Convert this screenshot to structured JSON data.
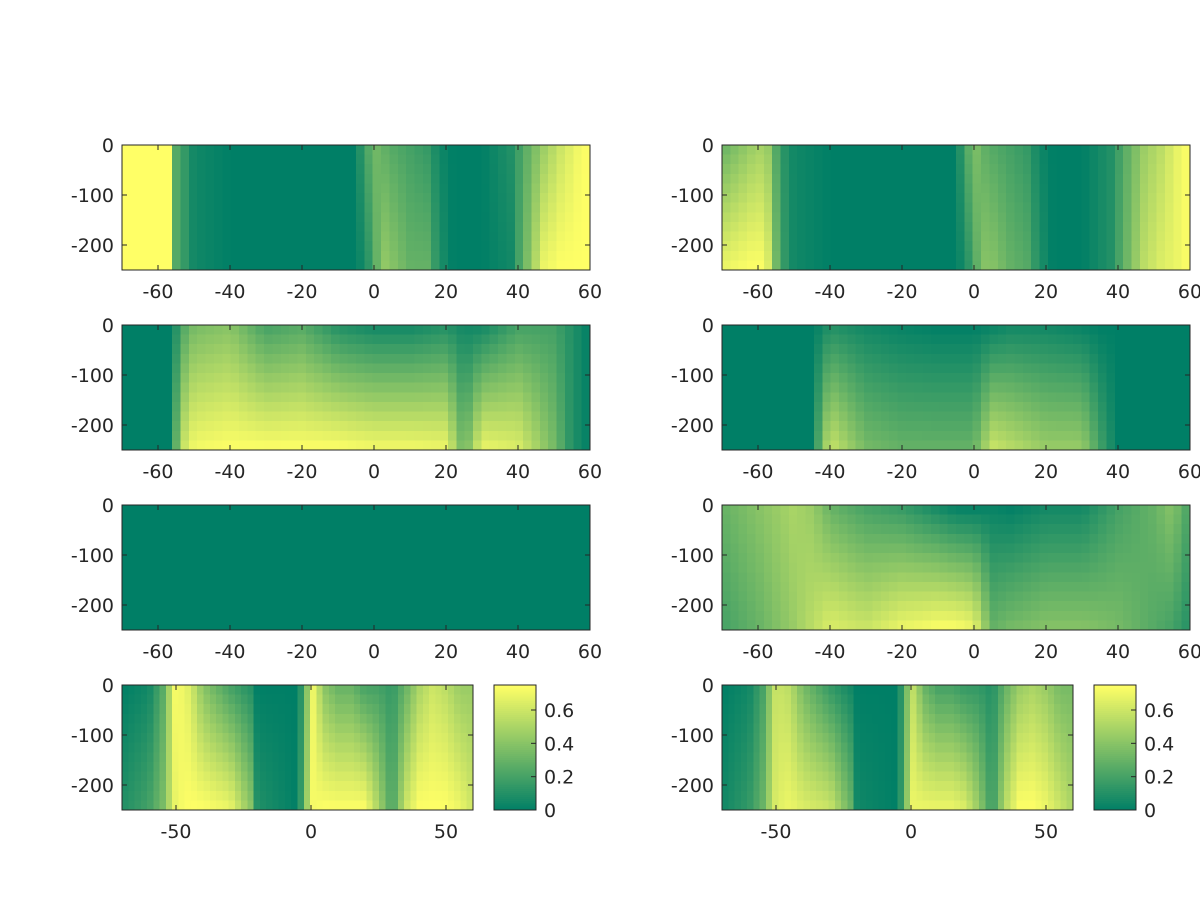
{
  "figure": {
    "background": "#ffffff",
    "colormap": {
      "low_color": "#007f66",
      "high_color": "#ffff66",
      "clim": [
        0,
        0.75
      ]
    }
  },
  "chart_data": [
    {
      "id": "panel-1",
      "type": "heatmap",
      "title": "",
      "xlim": [
        -70,
        60
      ],
      "ylim": [
        -250,
        0
      ],
      "xticks": [
        -60,
        -40,
        -20,
        0,
        20,
        40,
        60
      ],
      "yticks": [
        0,
        -100,
        -200
      ],
      "xtick_labels": [
        "-60",
        "-40",
        "-20",
        "0",
        "20",
        "40",
        "60"
      ],
      "ytick_labels": [
        "0",
        "-100",
        "-200"
      ],
      "profile_x": [
        -70,
        -56,
        -55,
        -50,
        -40,
        -20,
        -6,
        -3,
        0,
        2,
        5,
        10,
        15,
        18,
        22,
        30,
        38,
        43,
        47,
        52,
        57,
        60
      ],
      "top_values": [
        0.75,
        0.75,
        0.25,
        0.05,
        0.0,
        0.0,
        0.0,
        0.15,
        0.35,
        0.3,
        0.25,
        0.2,
        0.15,
        0.05,
        0.0,
        0.0,
        0.1,
        0.3,
        0.45,
        0.6,
        0.72,
        0.75
      ],
      "bottom_values": [
        0.75,
        0.75,
        0.25,
        0.05,
        0.0,
        0.0,
        0.0,
        0.05,
        0.2,
        0.45,
        0.4,
        0.3,
        0.3,
        0.1,
        0.0,
        0.0,
        0.05,
        0.4,
        0.7,
        0.75,
        0.75,
        0.75
      ],
      "colorbar": null
    },
    {
      "id": "panel-2",
      "type": "heatmap",
      "title": "",
      "xlim": [
        -70,
        60
      ],
      "ylim": [
        -250,
        0
      ],
      "xticks": [
        -60,
        -40,
        -20,
        0,
        20,
        40,
        60
      ],
      "yticks": [
        0,
        -100,
        -200
      ],
      "xtick_labels": [
        "-60",
        "-40",
        "-20",
        "0",
        "20",
        "40",
        "60"
      ],
      "ytick_labels": [
        "0",
        "-100",
        "-200"
      ],
      "profile_x": [
        -70,
        -62,
        -58,
        -56,
        -54,
        -50,
        -40,
        -20,
        -6,
        -3,
        0,
        2,
        5,
        10,
        15,
        18,
        22,
        30,
        38,
        43,
        47,
        52,
        57,
        60
      ],
      "top_values": [
        0.3,
        0.45,
        0.5,
        0.35,
        0.15,
        0.05,
        0.0,
        0.0,
        0.0,
        0.15,
        0.4,
        0.3,
        0.25,
        0.2,
        0.15,
        0.05,
        0.0,
        0.0,
        0.1,
        0.3,
        0.45,
        0.55,
        0.7,
        0.75
      ],
      "bottom_values": [
        0.7,
        0.75,
        0.75,
        0.5,
        0.2,
        0.05,
        0.0,
        0.0,
        0.0,
        0.05,
        0.2,
        0.4,
        0.4,
        0.3,
        0.25,
        0.1,
        0.0,
        0.0,
        0.1,
        0.35,
        0.55,
        0.65,
        0.7,
        0.75
      ],
      "colorbar": null
    },
    {
      "id": "panel-3",
      "type": "heatmap",
      "title": "",
      "xlim": [
        -70,
        60
      ],
      "ylim": [
        -250,
        0
      ],
      "xticks": [
        -60,
        -40,
        -20,
        0,
        20,
        40,
        60
      ],
      "yticks": [
        0,
        -100,
        -200
      ],
      "xtick_labels": [
        "-60",
        "-40",
        "-20",
        "0",
        "20",
        "40",
        "60"
      ],
      "ytick_labels": [
        "0",
        "-100",
        "-200"
      ],
      "profile_x": [
        -70,
        -56,
        -54,
        -50,
        -40,
        -30,
        -20,
        -10,
        0,
        10,
        20,
        25,
        30,
        40,
        50,
        55,
        60
      ],
      "top_values": [
        0.0,
        0.0,
        0.2,
        0.35,
        0.4,
        0.2,
        0.25,
        0.1,
        0.05,
        0.05,
        0.1,
        0.05,
        0.05,
        0.2,
        0.2,
        0.1,
        0.0
      ],
      "bottom_values": [
        0.0,
        0.0,
        0.55,
        0.72,
        0.75,
        0.75,
        0.75,
        0.75,
        0.72,
        0.72,
        0.7,
        0.3,
        0.7,
        0.65,
        0.35,
        0.1,
        0.0
      ],
      "colorbar": null
    },
    {
      "id": "panel-4",
      "type": "heatmap",
      "title": "",
      "xlim": [
        -70,
        60
      ],
      "ylim": [
        -250,
        0
      ],
      "xticks": [
        -60,
        -40,
        -20,
        0,
        20,
        40,
        60
      ],
      "yticks": [
        0,
        -100,
        -200
      ],
      "xtick_labels": [
        "-60",
        "-40",
        "-20",
        "0",
        "20",
        "40",
        "60"
      ],
      "ytick_labels": [
        "0",
        "-100",
        "-200"
      ],
      "profile_x": [
        -70,
        -45,
        -42,
        -40,
        -30,
        -20,
        -10,
        0,
        5,
        10,
        20,
        30,
        35,
        40,
        50,
        60
      ],
      "top_values": [
        0.0,
        0.0,
        0.05,
        0.1,
        0.05,
        0.02,
        0.0,
        0.0,
        0.02,
        0.05,
        0.05,
        0.02,
        0.0,
        0.0,
        0.0,
        0.0
      ],
      "bottom_values": [
        0.0,
        0.0,
        0.4,
        0.6,
        0.35,
        0.3,
        0.3,
        0.3,
        0.6,
        0.55,
        0.45,
        0.45,
        0.2,
        0.0,
        0.0,
        0.0
      ],
      "colorbar": null
    },
    {
      "id": "panel-5",
      "type": "heatmap",
      "title": "",
      "xlim": [
        -70,
        60
      ],
      "ylim": [
        -250,
        0
      ],
      "xticks": [
        -60,
        -40,
        -20,
        0,
        20,
        40,
        60
      ],
      "yticks": [
        0,
        -100,
        -200
      ],
      "xtick_labels": [
        "-60",
        "-40",
        "-20",
        "0",
        "20",
        "40",
        "60"
      ],
      "ytick_labels": [
        "0",
        "-100",
        "-200"
      ],
      "profile_x": [
        -70,
        0,
        60
      ],
      "top_values": [
        0.0,
        0.0,
        0.0
      ],
      "bottom_values": [
        0.0,
        0.0,
        0.0
      ],
      "colorbar": null
    },
    {
      "id": "panel-6",
      "type": "heatmap",
      "title": "",
      "xlim": [
        -70,
        60
      ],
      "ylim": [
        -250,
        0
      ],
      "xticks": [
        -60,
        -40,
        -20,
        0,
        20,
        40,
        60
      ],
      "yticks": [
        0,
        -100,
        -200
      ],
      "xtick_labels": [
        "-60",
        "-40",
        "-20",
        "0",
        "20",
        "40",
        "60"
      ],
      "ytick_labels": [
        "0",
        "-100",
        "-200"
      ],
      "profile_x": [
        -70,
        -60,
        -50,
        -45,
        -40,
        -30,
        -20,
        -10,
        -5,
        0,
        5,
        10,
        20,
        30,
        40,
        50,
        55,
        60
      ],
      "top_values": [
        0.3,
        0.4,
        0.5,
        0.45,
        0.3,
        0.2,
        0.15,
        0.05,
        0.0,
        0.0,
        0.02,
        0.0,
        0.05,
        0.05,
        0.2,
        0.3,
        0.4,
        0.2
      ],
      "bottom_values": [
        0.2,
        0.3,
        0.45,
        0.55,
        0.65,
        0.6,
        0.7,
        0.75,
        0.75,
        0.7,
        0.3,
        0.35,
        0.4,
        0.4,
        0.35,
        0.25,
        0.2,
        0.1
      ],
      "colorbar": null
    },
    {
      "id": "panel-7",
      "type": "heatmap",
      "title": "",
      "xlim": [
        -70,
        60
      ],
      "ylim": [
        -250,
        0
      ],
      "xticks": [
        -50,
        0,
        50
      ],
      "yticks": [
        0,
        -100,
        -200
      ],
      "xtick_labels": [
        "-50",
        "0",
        "50"
      ],
      "ytick_labels": [
        "0",
        "-100",
        "-200"
      ],
      "profile_x": [
        -70,
        -60,
        -55,
        -50,
        -45,
        -40,
        -30,
        -22,
        -20,
        -5,
        -2,
        0,
        5,
        10,
        15,
        20,
        25,
        30,
        35,
        40,
        45,
        50,
        55,
        60
      ],
      "top_values": [
        0.0,
        0.05,
        0.25,
        0.75,
        0.65,
        0.4,
        0.2,
        0.1,
        0.0,
        0.0,
        0.3,
        0.75,
        0.4,
        0.3,
        0.3,
        0.2,
        0.2,
        0.15,
        0.3,
        0.5,
        0.6,
        0.55,
        0.45,
        0.45
      ],
      "bottom_values": [
        0.1,
        0.2,
        0.35,
        0.7,
        0.75,
        0.75,
        0.7,
        0.4,
        0.1,
        0.0,
        0.4,
        0.72,
        0.75,
        0.75,
        0.75,
        0.75,
        0.5,
        0.2,
        0.6,
        0.75,
        0.75,
        0.75,
        0.7,
        0.6
      ],
      "colorbar": {
        "ticks": [
          0,
          0.2,
          0.4,
          0.6
        ],
        "tick_labels": [
          "0",
          "0.2",
          "0.4",
          "0.6"
        ],
        "range": [
          0,
          0.75
        ]
      }
    },
    {
      "id": "panel-8",
      "type": "heatmap",
      "title": "",
      "xlim": [
        -70,
        60
      ],
      "ylim": [
        -250,
        0
      ],
      "xticks": [
        -50,
        0,
        50
      ],
      "yticks": [
        0,
        -100,
        -200
      ],
      "xtick_labels": [
        "-50",
        "0",
        "50"
      ],
      "ytick_labels": [
        "0",
        "-100",
        "-200"
      ],
      "profile_x": [
        -70,
        -60,
        -55,
        -50,
        -45,
        -40,
        -30,
        -22,
        -20,
        -5,
        -2,
        0,
        5,
        10,
        15,
        20,
        25,
        30,
        35,
        40,
        45,
        50,
        55,
        60
      ],
      "top_values": [
        0.0,
        0.05,
        0.2,
        0.6,
        0.55,
        0.35,
        0.15,
        0.05,
        0.0,
        0.0,
        0.3,
        0.6,
        0.3,
        0.2,
        0.2,
        0.15,
        0.15,
        0.1,
        0.3,
        0.45,
        0.5,
        0.45,
        0.35,
        0.35
      ],
      "bottom_values": [
        0.05,
        0.15,
        0.3,
        0.65,
        0.7,
        0.65,
        0.6,
        0.3,
        0.05,
        0.0,
        0.35,
        0.7,
        0.7,
        0.7,
        0.7,
        0.65,
        0.45,
        0.15,
        0.55,
        0.75,
        0.75,
        0.7,
        0.6,
        0.5
      ],
      "colorbar": {
        "ticks": [
          0,
          0.2,
          0.4,
          0.6
        ],
        "tick_labels": [
          "0",
          "0.2",
          "0.4",
          "0.6"
        ],
        "range": [
          0,
          0.75
        ]
      }
    }
  ]
}
